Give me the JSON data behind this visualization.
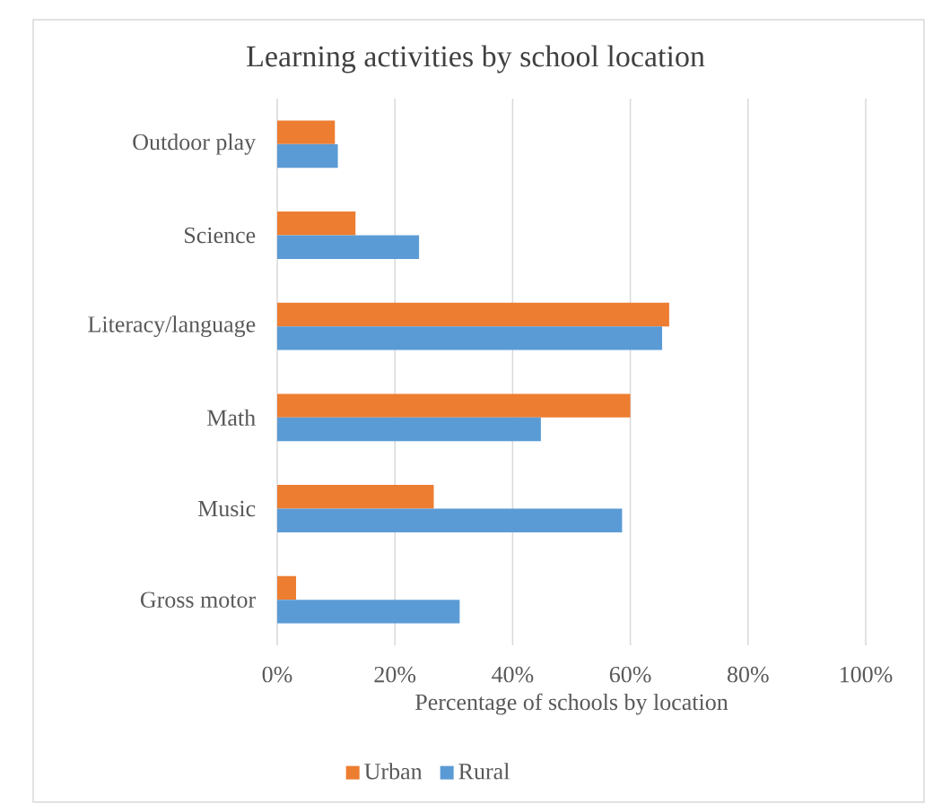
{
  "chart_data": {
    "type": "bar",
    "orientation": "horizontal",
    "title": "Learning activities by school location",
    "xlabel": "Percentage of schools by location",
    "categories": [
      "Outdoor play",
      "Science",
      "Literacy/language",
      "Math",
      "Music",
      "Gross motor"
    ],
    "series": [
      {
        "name": "Urban",
        "color": "#ed7d31",
        "values": [
          9.8,
          13.3,
          66.6,
          60.0,
          26.6,
          3.2
        ]
      },
      {
        "name": "Rural",
        "color": "#5b9bd5",
        "values": [
          10.3,
          24.1,
          65.4,
          44.8,
          58.6,
          31.0
        ]
      }
    ],
    "xlim": [
      0,
      100
    ],
    "xticks": [
      {
        "value": 0,
        "label": "0%"
      },
      {
        "value": 20,
        "label": "20%"
      },
      {
        "value": 40,
        "label": "40%"
      },
      {
        "value": 60,
        "label": "60%"
      },
      {
        "value": 80,
        "label": "80%"
      },
      {
        "value": 100,
        "label": "100%"
      }
    ],
    "grid": "x",
    "legend": "bottom"
  }
}
